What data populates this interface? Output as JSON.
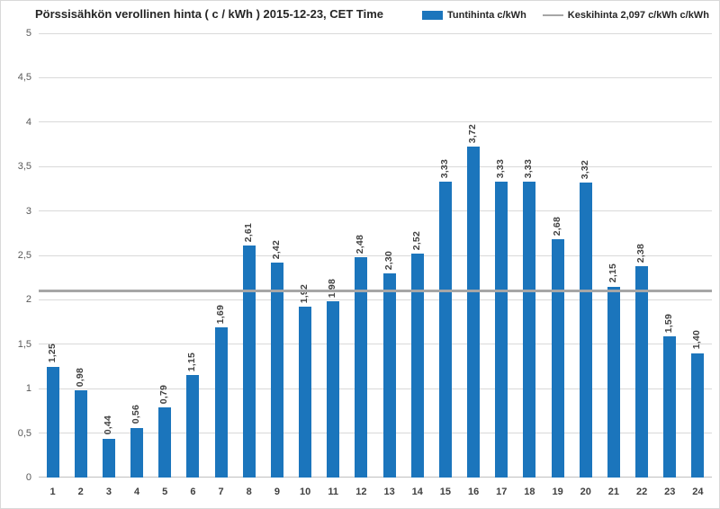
{
  "chart_data": {
    "type": "bar",
    "title": "Pörssisähkön verollinen hinta ( c / kWh ) 2015-12-23, CET Time",
    "categories": [
      "1",
      "2",
      "3",
      "4",
      "5",
      "6",
      "7",
      "8",
      "9",
      "10",
      "11",
      "12",
      "13",
      "14",
      "15",
      "16",
      "17",
      "18",
      "19",
      "20",
      "21",
      "22",
      "23",
      "24"
    ],
    "values": [
      1.25,
      0.98,
      0.44,
      0.56,
      0.79,
      1.15,
      1.69,
      2.61,
      2.42,
      1.92,
      1.98,
      2.48,
      2.3,
      2.52,
      3.33,
      3.72,
      3.33,
      3.33,
      2.68,
      3.32,
      2.15,
      2.38,
      1.59,
      1.4
    ],
    "bar_labels": [
      "1,25",
      "0,98",
      "0,44",
      "0,56",
      "0,79",
      "1,15",
      "1,69",
      "2,61",
      "2,42",
      "1,92",
      "1,98",
      "2,48",
      "2,30",
      "2,52",
      "3,33",
      "3,72",
      "3,33",
      "3,33",
      "2,68",
      "3,32",
      "2,15",
      "2,38",
      "1,59",
      "1,40"
    ],
    "average_line_value": 2.097,
    "ylim": [
      0,
      5
    ],
    "yticks": [
      "0",
      "0,5",
      "1",
      "1,5",
      "2",
      "2,5",
      "3",
      "3,5",
      "4",
      "4,5",
      "5"
    ],
    "grid": true,
    "legend_position": "top",
    "legend": {
      "hourly": {
        "label": "Tuntihinta c/kWh"
      },
      "average": {
        "label": "Keskihinta 2,097 c/kWh c/kWh"
      }
    },
    "colors": {
      "bar": "#1b75bc",
      "average_line": "#a6a6a6",
      "gridline": "#d9d9d9"
    },
    "xlabel": "",
    "ylabel": ""
  }
}
